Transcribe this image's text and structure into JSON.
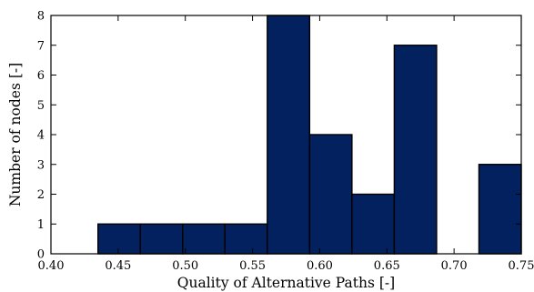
{
  "colors": {
    "bar_fill": "#03215e",
    "bar_edge": "#000000",
    "axis": "#000000",
    "background": "#ffffff"
  },
  "chart_data": {
    "type": "bar",
    "title": "",
    "xlabel": "Quality of Alternative Paths [-]",
    "ylabel": "Number of nodes [-]",
    "xlim": [
      0.4,
      0.75
    ],
    "ylim": [
      0,
      8
    ],
    "xticks": [
      0.4,
      0.45,
      0.5,
      0.55,
      0.6,
      0.65,
      0.7,
      0.75
    ],
    "xtick_labels": [
      "0.40",
      "0.45",
      "0.50",
      "0.55",
      "0.60",
      "0.65",
      "0.70",
      "0.75"
    ],
    "yticks": [
      0,
      1,
      2,
      3,
      4,
      5,
      6,
      7,
      8
    ],
    "ytick_labels": [
      "0",
      "1",
      "2",
      "3",
      "4",
      "5",
      "6",
      "7",
      "8"
    ],
    "grid": false,
    "bins": [
      {
        "x0": 0.435,
        "x1": 0.4665,
        "value": 1
      },
      {
        "x0": 0.4665,
        "x1": 0.498,
        "value": 1
      },
      {
        "x0": 0.498,
        "x1": 0.5295,
        "value": 1
      },
      {
        "x0": 0.5295,
        "x1": 0.561,
        "value": 1
      },
      {
        "x0": 0.561,
        "x1": 0.5925,
        "value": 8
      },
      {
        "x0": 0.5925,
        "x1": 0.624,
        "value": 4
      },
      {
        "x0": 0.624,
        "x1": 0.6555,
        "value": 2
      },
      {
        "x0": 0.6555,
        "x1": 0.687,
        "value": 7
      },
      {
        "x0": 0.687,
        "x1": 0.7185,
        "value": 0
      },
      {
        "x0": 0.7185,
        "x1": 0.75,
        "value": 3
      }
    ]
  }
}
